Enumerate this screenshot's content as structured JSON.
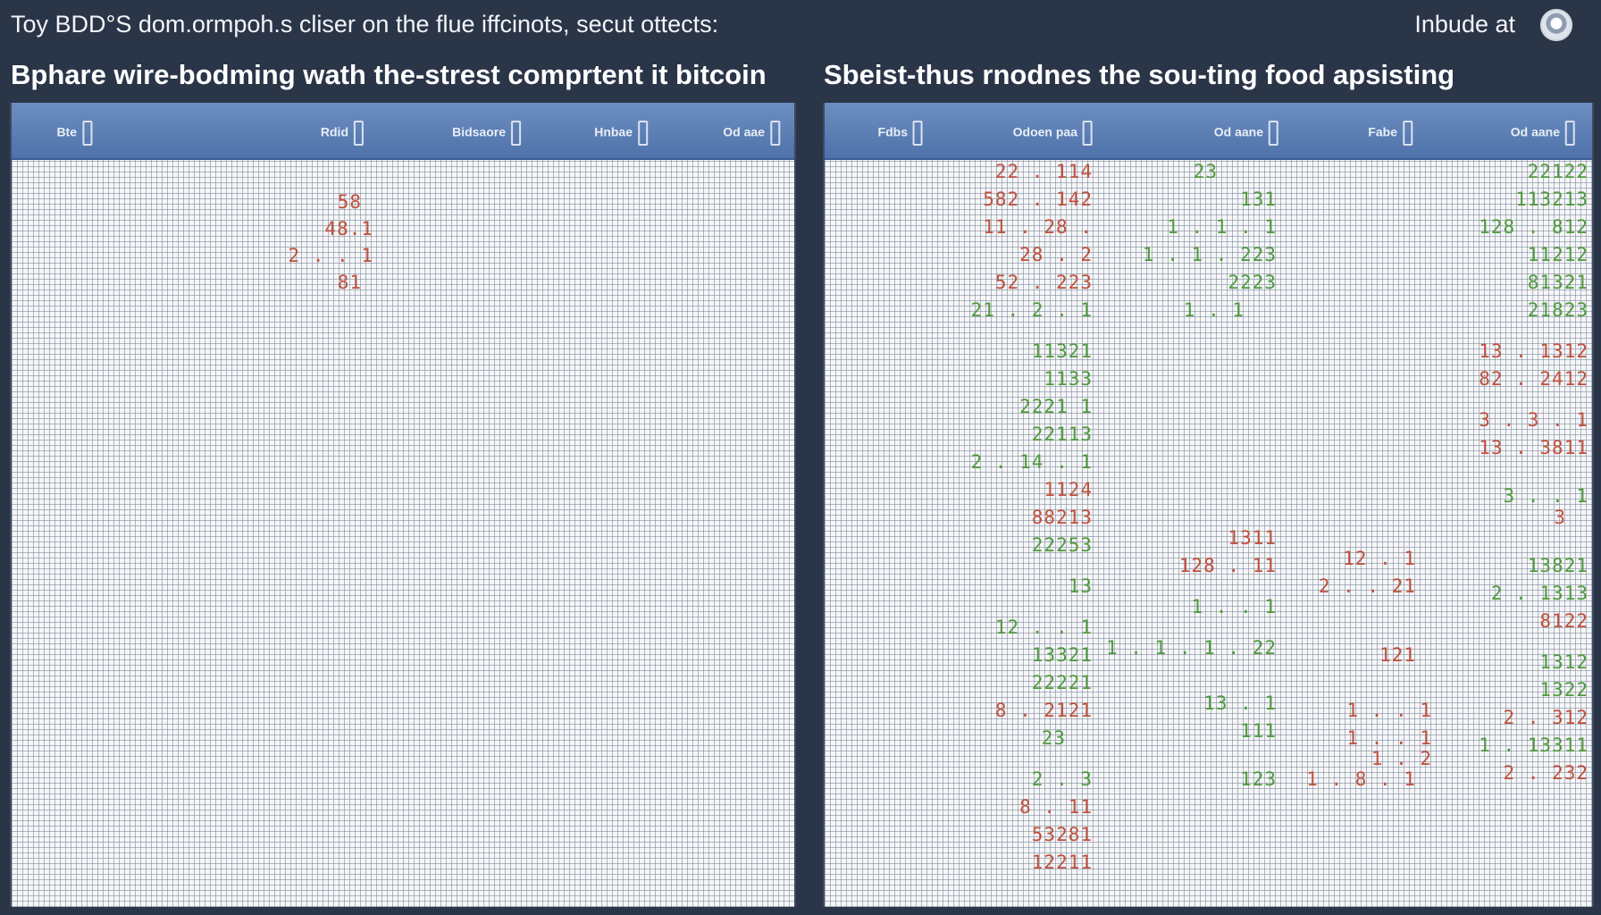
{
  "topbar": {
    "title": "Toy BDD°S dom.ormpoh.s cliser on the flue iffcinots, secut ottects:",
    "right_label": "Inbude at"
  },
  "left_panel": {
    "title": "Bphare wire-bodming wath the-strest comprtent it bitcoin",
    "columns": [
      "Bte",
      "Rdid",
      "Bidsaore",
      "Hnbae",
      "Od aae"
    ],
    "rows": [
      "58",
      "48.1",
      "2 . . 1",
      "81"
    ]
  },
  "right_panel": {
    "title": "Sbeist-thus rnodnes the sou-ting food apsisting",
    "columns": [
      "Fdbs",
      "Odoen paa",
      "Od aane",
      "Fabe",
      "Od aane"
    ],
    "col_a": [
      "22 . 114",
      "582 . 142",
      "11 . 28 .",
      "28 . 2",
      "52 . 223",
      "21 . 2 . 1",
      "11321",
      "1133",
      "2221 1",
      "22113",
      "2 . 14 . 1",
      "1124",
      "88213",
      "22253",
      "13",
      "12 . . 1",
      "13321",
      "22221",
      "8 . 2121",
      "23",
      "2 . 3",
      "8 . 11",
      "53281",
      "12211"
    ],
    "col_b": [
      "23",
      "131",
      "1 . 1 . 1",
      "1 . 1 . 223",
      "2223",
      "1 . 1",
      "1311",
      "128 . 11",
      "1 . . 1",
      "1 . 1 . 1 . 22",
      "13 . 1",
      "111",
      "123"
    ],
    "col_c": [
      "12 . 1",
      "2 . . 21",
      "121",
      "1 . . 1",
      "1 . . 1",
      "1 . 2",
      "1 . 8 . 1"
    ],
    "col_d": [
      "22122",
      "113213",
      "128 . 812",
      "11212",
      "81321",
      "21823",
      "13 . 1312",
      "82 . 2412",
      "3 . 3 . 1",
      "13 . 3811",
      "3 . . 1",
      "3",
      "13821",
      "2 . 1313",
      "8122",
      "1312",
      "1322",
      "2 . 312",
      "1 . 13311",
      "2 . 232"
    ]
  }
}
